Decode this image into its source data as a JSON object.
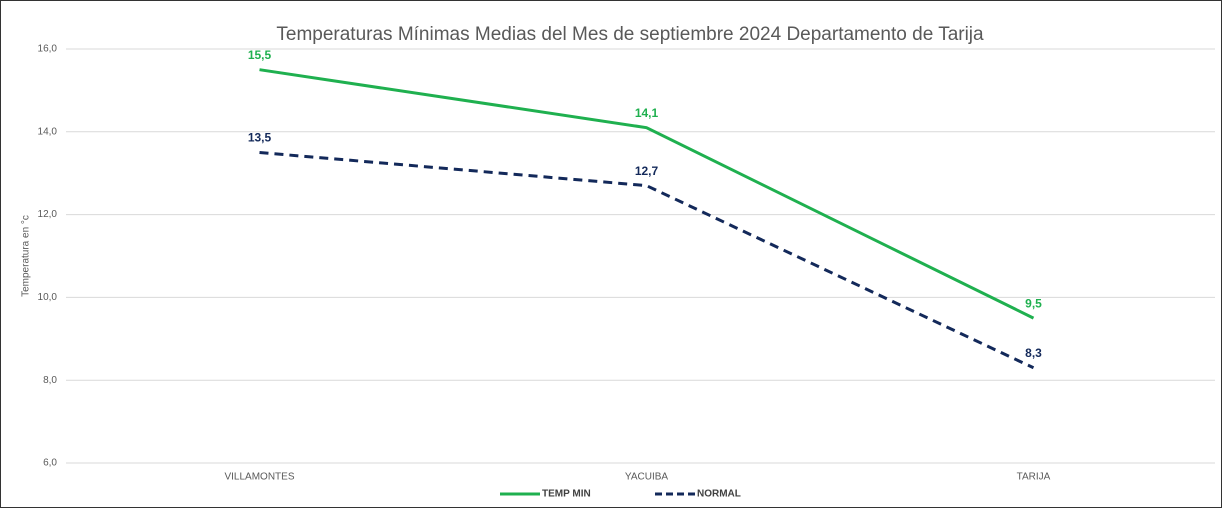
{
  "chart_data": {
    "type": "line",
    "title": "Temperaturas Mínimas Medias del Mes de septiembre 2024 Departamento  de Tarija",
    "y_label": "Temperatura en °c",
    "categories": [
      "VILLAMONTES",
      "YACUIBA",
      "TARIJA"
    ],
    "series": [
      {
        "name": "TEMP MIN",
        "color": "#1fb04f",
        "dashed": false,
        "values": [
          15.5,
          14.1,
          9.5
        ],
        "value_labels": [
          "15,5",
          "14,1",
          "9,5"
        ]
      },
      {
        "name": "NORMAL",
        "color": "#13295a",
        "dashed": true,
        "values": [
          13.5,
          12.7,
          8.3
        ],
        "value_labels": [
          "13,5",
          "12,7",
          "8,3"
        ]
      }
    ],
    "ylim": [
      6,
      16
    ],
    "yticks": [
      {
        "value": 6,
        "label": "6,0"
      },
      {
        "value": 8,
        "label": "8,0"
      },
      {
        "value": 10,
        "label": "10,0"
      },
      {
        "value": 12,
        "label": "12,0"
      },
      {
        "value": 14,
        "label": "14,0"
      },
      {
        "value": 16,
        "label": "16,0"
      }
    ],
    "grid": true,
    "legend": "bottom"
  }
}
